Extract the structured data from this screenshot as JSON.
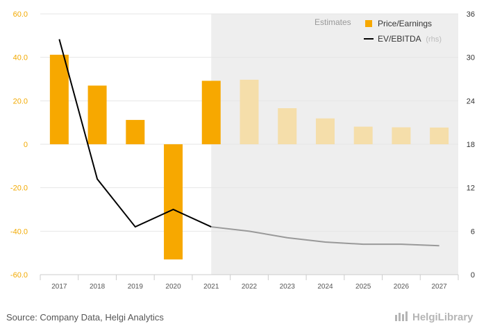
{
  "chart_data": {
    "type": "bar",
    "categories": [
      "2017",
      "2018",
      "2019",
      "2020",
      "2021",
      "2022",
      "2023",
      "2024",
      "2025",
      "2026",
      "2027"
    ],
    "series": [
      {
        "name": "Price/Earnings",
        "axis": "left",
        "kind": "bar",
        "values": [
          41.2,
          27.0,
          11.2,
          -53.0,
          29.2,
          29.7,
          16.6,
          11.9,
          8.1,
          7.8,
          7.7
        ]
      },
      {
        "name": "EV/EBITDA",
        "axis": "right",
        "kind": "line",
        "values": [
          32.5,
          13.2,
          6.6,
          9.0,
          6.6,
          6.0,
          5.1,
          4.5,
          4.2,
          4.2,
          4.0
        ]
      }
    ],
    "ylim_left": [
      -60,
      60
    ],
    "ylim_right": [
      0,
      36
    ],
    "yticks_left": [
      "60.0",
      "40.0",
      "20.0",
      "0",
      "-20.0",
      "-40.0",
      "-60.0"
    ],
    "yticks_right": [
      "36",
      "30",
      "24",
      "18",
      "12",
      "6",
      "0"
    ],
    "estimates_from": "2021",
    "estimates_label": "Estimates",
    "legend": {
      "placement": "top-right",
      "unit_note": "(rhs)"
    },
    "grid": true,
    "colors": {
      "bar": "#f7a800",
      "bar_estimate": "#f5deaa",
      "line": "#000000",
      "line_estimate": "#999999",
      "estimate_bg": "#eeeeee",
      "grid": "#e6e6e6"
    }
  },
  "footer": {
    "source": "Source: Company Data, Helgi Analytics",
    "logo": "HelgiLibrary"
  }
}
